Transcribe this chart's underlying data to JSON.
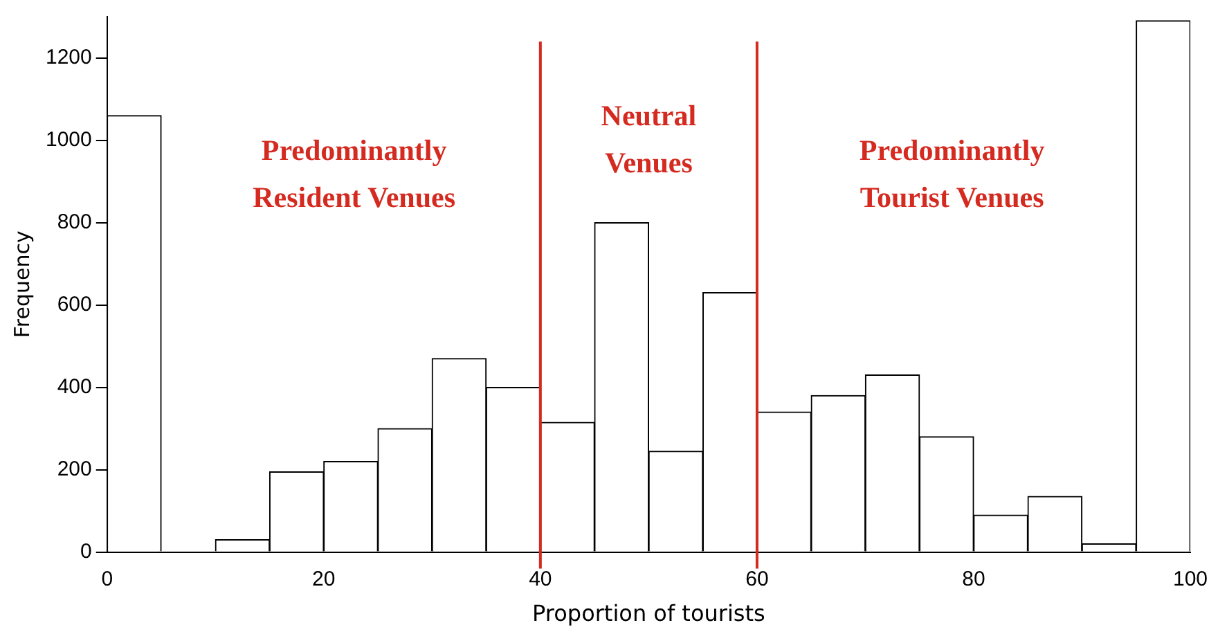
{
  "chart_data": {
    "type": "histogram",
    "xlabel": "Proportion of tourists",
    "ylabel": "Frequency",
    "bins": [
      0,
      5,
      10,
      15,
      20,
      25,
      30,
      35,
      40,
      45,
      50,
      55,
      60,
      65,
      70,
      75,
      80,
      85,
      90,
      95,
      100
    ],
    "values": [
      1060,
      0,
      30,
      195,
      220,
      300,
      470,
      400,
      315,
      800,
      245,
      630,
      340,
      380,
      430,
      280,
      90,
      135,
      20,
      1290
    ],
    "color": "#ffffff",
    "xlim": [
      0,
      100
    ],
    "xticks": [
      0,
      20,
      40,
      60,
      80,
      100
    ],
    "ylim": [
      0,
      1300
    ],
    "yticks": [
      0,
      200,
      400,
      600,
      800,
      1000,
      1200
    ],
    "grid": false,
    "legend": false,
    "ref_lines": [
      {
        "axis": "x",
        "value": 40,
        "color": "#d42a20"
      },
      {
        "axis": "x",
        "value": 60,
        "color": "#d42a20"
      }
    ],
    "annotations": [
      "Predominantly Resident Venues",
      "Neutral Venues",
      "Predominantly Tourist Venues"
    ]
  }
}
